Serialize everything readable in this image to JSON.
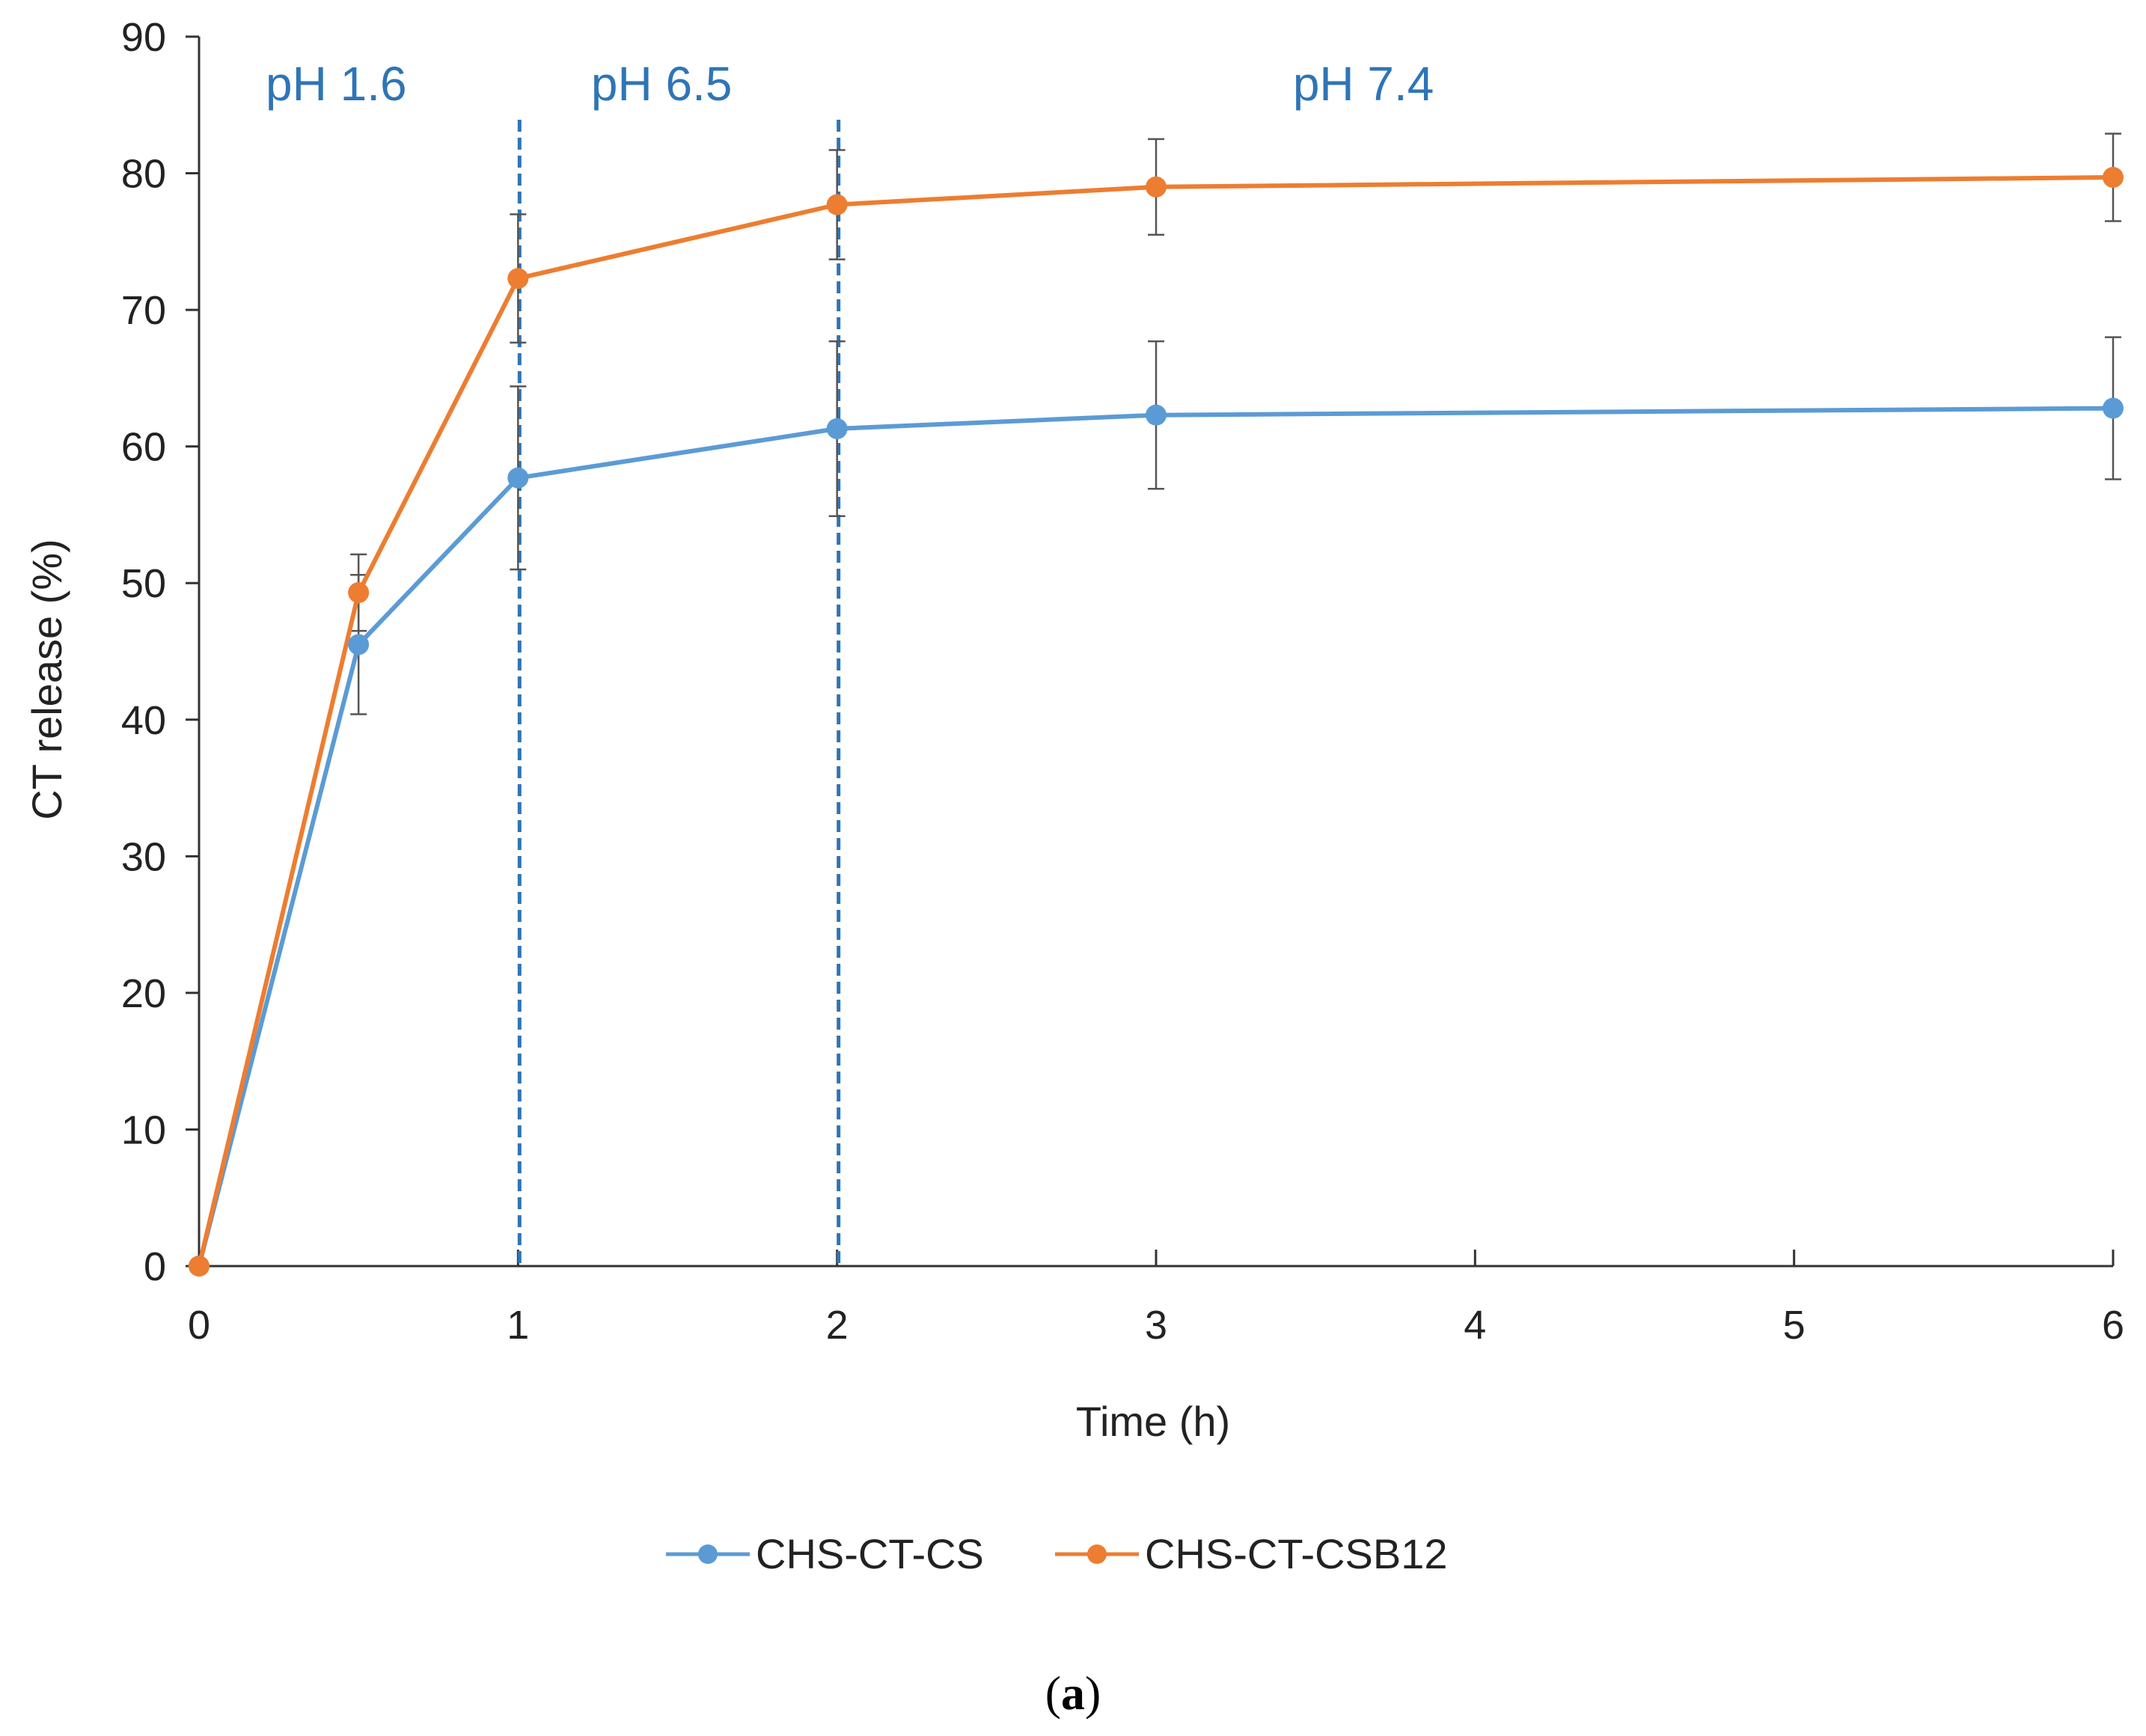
{
  "chart_data": {
    "type": "line",
    "xlabel": "Time (h)",
    "ylabel": "CT release (%)",
    "ylim": [
      0,
      90
    ],
    "yticks": [
      0,
      10,
      20,
      30,
      40,
      50,
      60,
      70,
      80,
      90
    ],
    "categories": [
      "0",
      "1",
      "2",
      "3",
      "4",
      "5",
      "6"
    ],
    "x_positions_note": "x axis is categorical; ticks labelled 0,1,2,3,4,5,6 are equally spaced; the 0.5 h point lies midway between 0 and 1",
    "series": [
      {
        "name": "CHS-CT-CS",
        "color": "#5b9bd5",
        "points": [
          {
            "x": 0,
            "y": 0,
            "err": 0
          },
          {
            "x": 0.5,
            "y": 45.5,
            "err": 5.1
          },
          {
            "x": 1,
            "y": 57.7,
            "err": 6.7
          },
          {
            "x": 2,
            "y": 61.3,
            "err": 6.4
          },
          {
            "x": 3,
            "y": 62.3,
            "err": 5.4
          },
          {
            "x": 6,
            "y": 62.8,
            "err": 5.2
          }
        ]
      },
      {
        "name": "CHS-CT-CSB12",
        "color": "#ed7d31",
        "points": [
          {
            "x": 0,
            "y": 0,
            "err": 0
          },
          {
            "x": 0.5,
            "y": 49.3,
            "err": 2.8
          },
          {
            "x": 1,
            "y": 72.3,
            "err": 4.7
          },
          {
            "x": 2,
            "y": 77.7,
            "err": 4.0
          },
          {
            "x": 3,
            "y": 79.0,
            "err": 3.5
          },
          {
            "x": 6,
            "y": 79.7,
            "err": 3.2
          }
        ]
      }
    ],
    "region_dividers": [
      1,
      2
    ],
    "region_labels": [
      {
        "text": "pH 1.6",
        "x": 0.43
      },
      {
        "text": "pH 6.5",
        "x": 1.45
      },
      {
        "text": "pH 7.4",
        "x": 3.65
      }
    ],
    "region_color": "#2e75b6",
    "legend_position": "bottom",
    "caption_letter": "a"
  }
}
